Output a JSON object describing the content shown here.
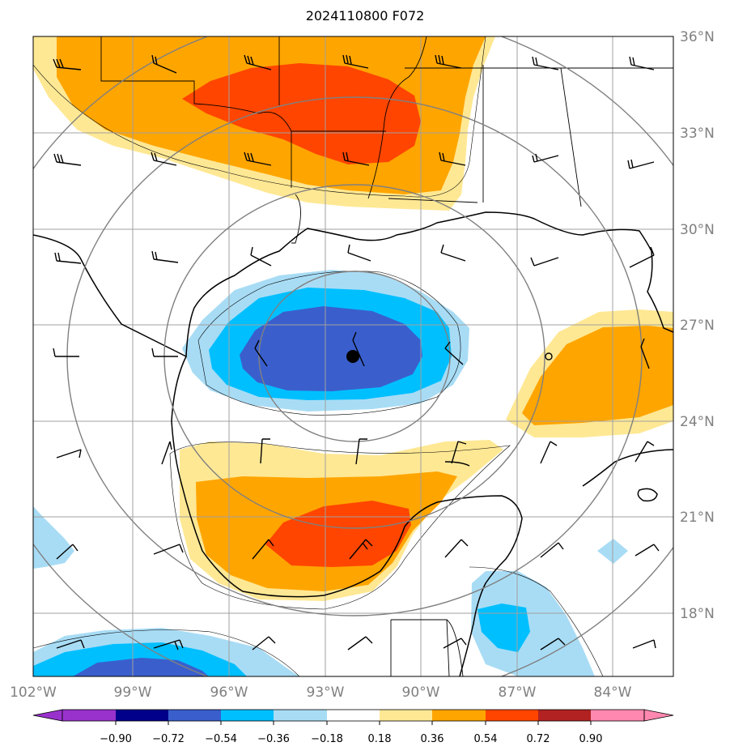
{
  "title": "2024110800 F072",
  "map": {
    "lon_range": [
      -102,
      -82
    ],
    "lat_range": [
      16,
      36
    ],
    "lon_labels": [
      "102°W",
      "99°W",
      "96°W",
      "93°W",
      "90°W",
      "87°W",
      "84°W"
    ],
    "lon_values": [
      -102,
      -99,
      -96,
      -93,
      -90,
      -87,
      -84
    ],
    "lat_labels": [
      "36°N",
      "33°N",
      "30°N",
      "27°N",
      "24°N",
      "21°N",
      "18°N"
    ],
    "lat_values": [
      36,
      33,
      30,
      27,
      24,
      21,
      18
    ],
    "storm_center": {
      "lon": -92.1,
      "lat": 26.0
    },
    "range_rings_deg": [
      3,
      6,
      9,
      12
    ]
  },
  "colorbar": {
    "labels": [
      "−0.90",
      "−0.72",
      "−0.54",
      "−0.36",
      "−0.18",
      "0.18",
      "0.36",
      "0.54",
      "0.72",
      "0.90"
    ],
    "values": [
      -0.9,
      -0.72,
      -0.54,
      -0.36,
      -0.18,
      0.18,
      0.36,
      0.54,
      0.72,
      0.9
    ],
    "colors": [
      "#9932cc",
      "#00008b",
      "#3a5fcd",
      "#00bfff",
      "#a8dcf5",
      "#ffffff",
      "#ffe894",
      "#ffa500",
      "#ff4500",
      "#b22222",
      "#ff88b0"
    ]
  },
  "colors": {
    "gridline": "#a0a0a0",
    "ring": "#808080",
    "coast": "#000000"
  }
}
